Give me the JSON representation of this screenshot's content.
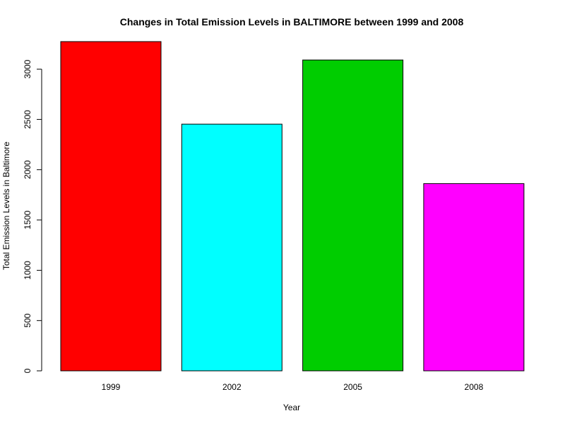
{
  "chart_data": {
    "type": "bar",
    "title": "Changes in Total Emission Levels in BALTIMORE between 1999 and 2008",
    "xlabel": "Year",
    "ylabel": "Total Emission Levels in Baltimore",
    "categories": [
      "1999",
      "2002",
      "2005",
      "2008"
    ],
    "values": [
      3274,
      2453,
      3091,
      1862
    ],
    "colors": [
      "#FF0000",
      "#00FFFF",
      "#00CD00",
      "#FF00FF"
    ],
    "yticks": [
      0,
      500,
      1000,
      1500,
      2000,
      2500,
      3000
    ],
    "ylim": [
      0,
      3274
    ],
    "grid": false,
    "legend": "none"
  }
}
